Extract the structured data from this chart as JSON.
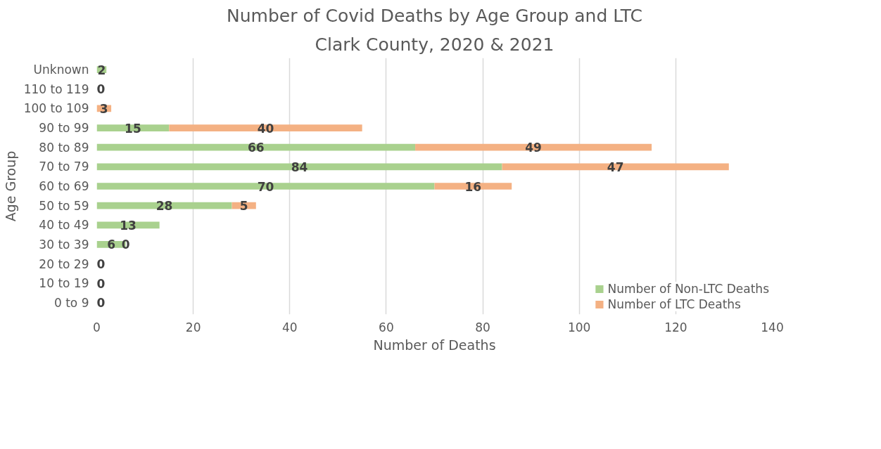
{
  "chart_data": {
    "type": "bar",
    "orientation": "horizontal",
    "stacked": true,
    "title": "Number of Covid Deaths by Age Group and LTC",
    "subtitle": "Clark County, 2020 & 2021",
    "xlabel": "Number of Deaths",
    "ylabel": "Age Group",
    "categories": [
      "Unknown",
      "110 to 119",
      "100 to 109",
      "90 to 99",
      "80 to 89",
      "70 to 79",
      "60 to 69",
      "50 to 59",
      "40 to 49",
      "30 to 39",
      "20 to 29",
      "10 to 19",
      "0 to 9"
    ],
    "series": [
      {
        "name": "Number of Non-LTC Deaths",
        "color": "#a9d18e",
        "values": [
          2,
          0,
          null,
          15,
          66,
          84,
          70,
          28,
          13,
          6,
          0,
          0,
          0
        ],
        "value_labels": [
          "2",
          "0",
          null,
          "15",
          "66",
          "84",
          "70",
          "28",
          "13",
          "6",
          "0",
          "0",
          "0"
        ]
      },
      {
        "name": "Number of LTC Deaths",
        "color": "#f4b183",
        "values": [
          null,
          null,
          3,
          40,
          49,
          47,
          16,
          5,
          null,
          0,
          null,
          null,
          null
        ],
        "value_labels": [
          null,
          null,
          "3",
          "40",
          "49",
          "47",
          "16",
          "5",
          null,
          "0",
          null,
          null,
          null
        ]
      }
    ],
    "xlim": [
      0,
      140
    ],
    "xticks": [
      0,
      20,
      40,
      60,
      80,
      100,
      120,
      140
    ],
    "grid": "x",
    "legend": "bottom right"
  }
}
